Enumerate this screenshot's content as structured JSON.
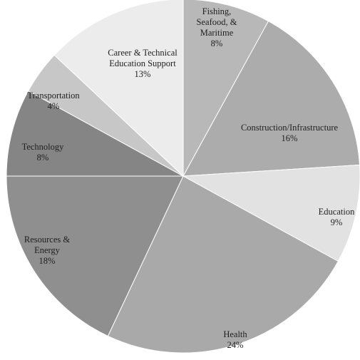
{
  "chart_data": {
    "type": "pie",
    "title": "",
    "slices": [
      {
        "label_lines": [
          "Fishing,",
          "Seafood, &",
          "Maritime"
        ],
        "pct": "8%",
        "value": 8,
        "color": "#b8b8b8"
      },
      {
        "label_lines": [
          "Construction/Infrastructure"
        ],
        "pct": "16%",
        "value": 16,
        "color": "#acacac"
      },
      {
        "label_lines": [
          "Education"
        ],
        "pct": "9%",
        "value": 9,
        "color": "#e2e2e2"
      },
      {
        "label_lines": [
          "Health"
        ],
        "pct": "24%",
        "value": 24,
        "color": "#a9a9a9"
      },
      {
        "label_lines": [
          "Resources &",
          "Energy"
        ],
        "pct": "18%",
        "value": 18,
        "color": "#8f8f8f"
      },
      {
        "label_lines": [
          "Technology"
        ],
        "pct": "8%",
        "value": 8,
        "color": "#858585"
      },
      {
        "label_lines": [
          "Transportation"
        ],
        "pct": "4%",
        "value": 4,
        "color": "#c7c7c7"
      },
      {
        "label_lines": [
          "Career & Technical",
          "Education Support"
        ],
        "pct": "13%",
        "value": 13,
        "color": "#ececec"
      }
    ]
  }
}
